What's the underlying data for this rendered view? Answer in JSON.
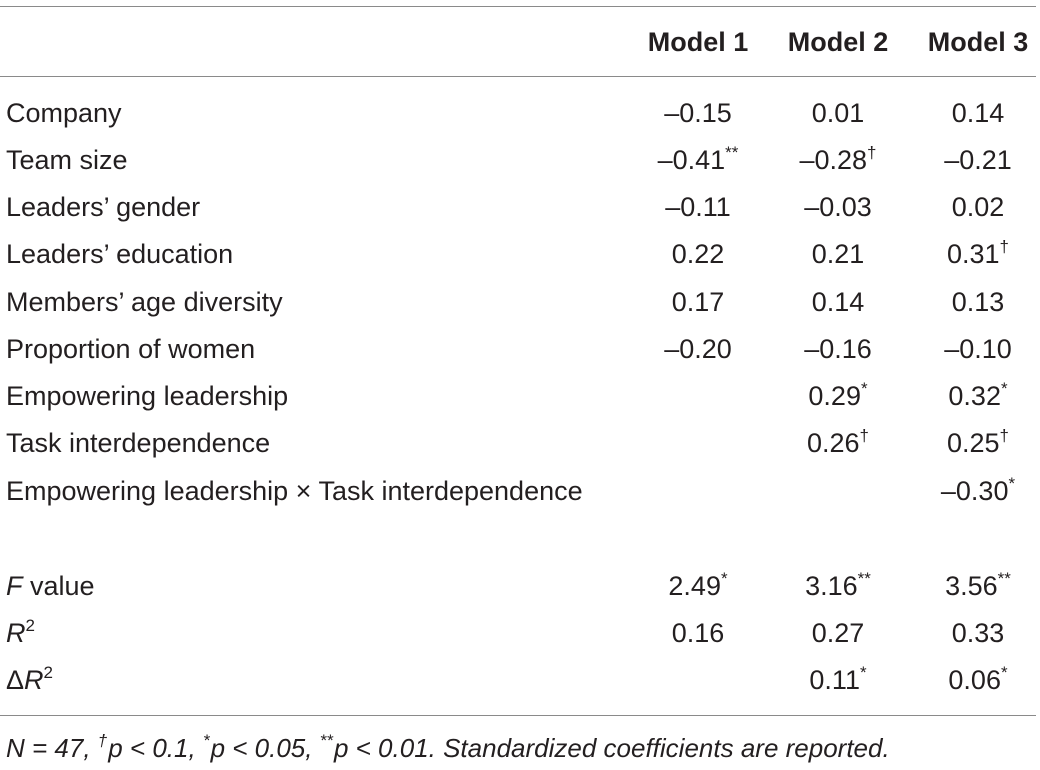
{
  "header": {
    "col1": "Model 1",
    "col2": "Model 2",
    "col3": "Model 3"
  },
  "rows": [
    {
      "label": "Company",
      "m1": "–0.15",
      "m1_sup": "",
      "m2": "0.01",
      "m2_sup": "",
      "m3": "0.14",
      "m3_sup": ""
    },
    {
      "label": "Team size",
      "m1": "–0.41",
      "m1_sup": "**",
      "m2": "–0.28",
      "m2_sup": "†",
      "m3": "–0.21",
      "m3_sup": ""
    },
    {
      "label": "Leaders’ gender",
      "m1": "–0.11",
      "m1_sup": "",
      "m2": "–0.03",
      "m2_sup": "",
      "m3": "0.02",
      "m3_sup": ""
    },
    {
      "label": "Leaders’ education",
      "m1": "0.22",
      "m1_sup": "",
      "m2": "0.21",
      "m2_sup": "",
      "m3": "0.31",
      "m3_sup": "†"
    },
    {
      "label": "Members’ age diversity",
      "m1": "0.17",
      "m1_sup": "",
      "m2": "0.14",
      "m2_sup": "",
      "m3": "0.13",
      "m3_sup": ""
    },
    {
      "label": "Proportion of women",
      "m1": "–0.20",
      "m1_sup": "",
      "m2": "–0.16",
      "m2_sup": "",
      "m3": "–0.10",
      "m3_sup": ""
    },
    {
      "label": "Empowering leadership",
      "m1": "",
      "m1_sup": "",
      "m2": "0.29",
      "m2_sup": "*",
      "m3": "0.32",
      "m3_sup": "*"
    },
    {
      "label": "Task interdependence",
      "m1": "",
      "m1_sup": "",
      "m2": "0.26",
      "m2_sup": "†",
      "m3": "0.25",
      "m3_sup": "†"
    },
    {
      "label": "Empowering leadership × Task interdependence",
      "m1": "",
      "m1_sup": "",
      "m2": "",
      "m2_sup": "",
      "m3": "–0.30",
      "m3_sup": "*"
    }
  ],
  "stats": {
    "f": {
      "label_italic": "F",
      "label_rest": " value",
      "m1": "2.49",
      "m1_sup": "*",
      "m2": "3.16",
      "m2_sup": "**",
      "m3": "3.56",
      "m3_sup": "**"
    },
    "r2": {
      "label_italic": "R",
      "label_sup": "2",
      "m1": "0.16",
      "m2": "0.27",
      "m3": "0.33"
    },
    "dr2": {
      "label_prefix": "Δ",
      "label_italic": "R",
      "label_sup": "2",
      "m2": "0.11",
      "m2_sup": "*",
      "m3": "0.06",
      "m3_sup": "*"
    }
  },
  "footnote": {
    "n_part": "N = 47, ",
    "dagger": "†",
    "p1": "p < 0.1, ",
    "star1": "*",
    "p2": "p < 0.05, ",
    "star2": "**",
    "p3": "p < 0.01. Standardized coefficients are reported."
  }
}
